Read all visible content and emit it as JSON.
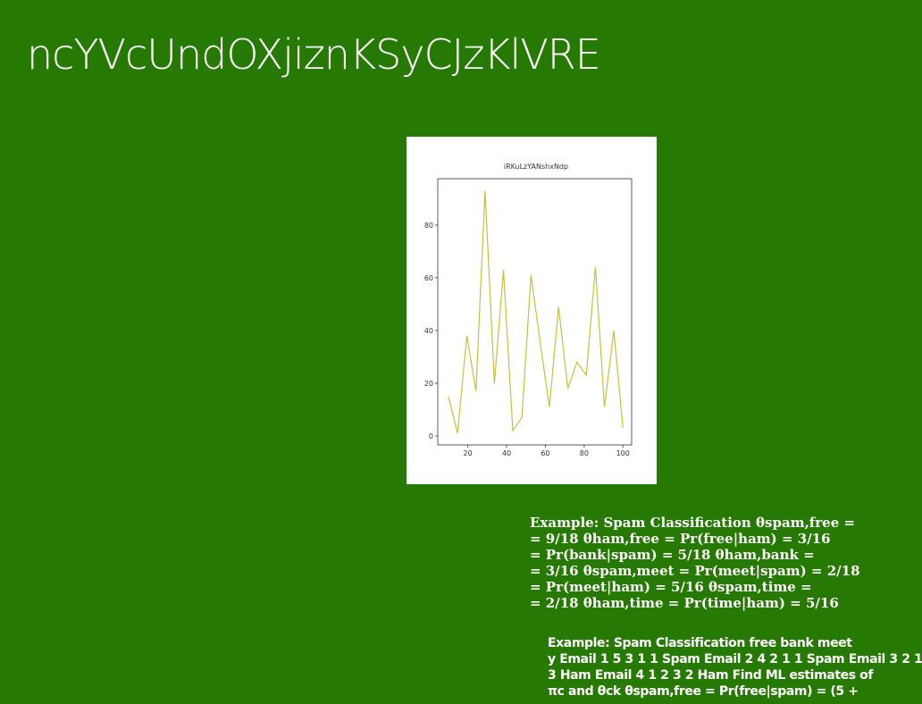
{
  "title": "ncYVcUndOXjiznKSyCJzKlVRE",
  "chart_data": {
    "type": "line",
    "title": "iRKuLzYANshxNdp",
    "x": [
      10,
      14.7,
      19.5,
      24.2,
      28.9,
      33.7,
      38.4,
      43.2,
      47.9,
      52.6,
      57.4,
      62.1,
      66.8,
      71.6,
      76.3,
      81.1,
      85.8,
      90.5,
      95.3,
      100
    ],
    "series": [
      {
        "color": "#c8c03a",
        "values": [
          15,
          1,
          38,
          17,
          93,
          20,
          63,
          2,
          7,
          61,
          35,
          11,
          49,
          18,
          28,
          23,
          64,
          11,
          40,
          3
        ]
      }
    ],
    "xlim": [
      4.5,
      104.5
    ],
    "xticks": [
      20,
      40,
      60,
      80,
      100
    ],
    "ylim": [
      -3.4,
      97.6
    ],
    "yticks": [
      0,
      20,
      40,
      60,
      80
    ]
  },
  "text_blocks": [
    [
      "Example: Spam Classification θspam,free =",
      "= 9/18 θham,free = Pr(free|ham) = 3/16",
      "= Pr(bank|spam) = 5/18 θham,bank =",
      "= 3/16 θspam,meet = Pr(meet|spam) = 2/18",
      "= Pr(meet|ham) = 5/16 θspam,time =",
      "= 2/18 θham,time = Pr(time|ham) = 5/16"
    ],
    [
      "Example: Spam Classification free bank meet",
      "y Email 1 5 3 1 1 Spam Email 2 4 2 1 1 Spam Email 3 2 1",
      "3 Ham Email 4 1 2 3 2 Ham Find ML estimates of",
      "πc and θck θspam,free = Pr(free|spam) = (5 +"
    ]
  ]
}
